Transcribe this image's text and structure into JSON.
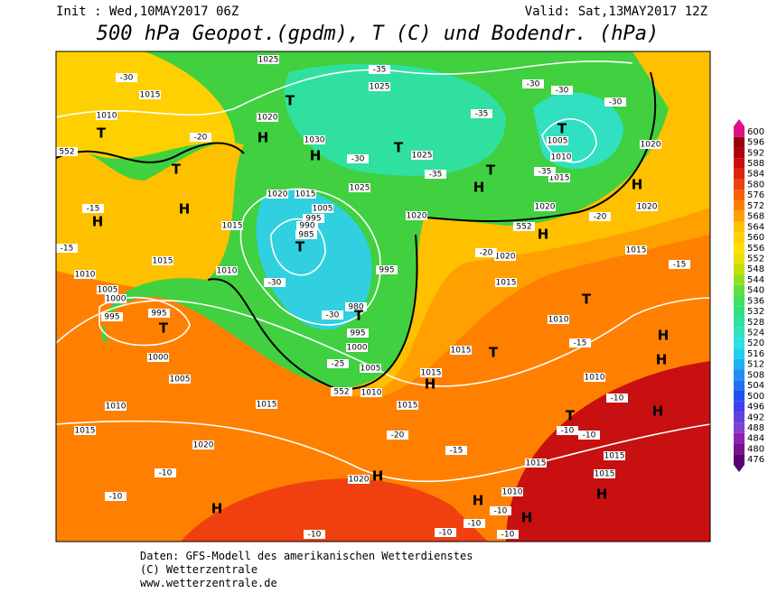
{
  "header": {
    "init": "Init : Wed,10MAY2017 06Z",
    "valid": "Valid: Sat,13MAY2017 12Z",
    "title": "500 hPa Geopot.(gpdm), T (C) und Bodendr. (hPa)"
  },
  "legend": {
    "levels": [
      600,
      596,
      592,
      588,
      584,
      580,
      576,
      572,
      568,
      564,
      560,
      556,
      552,
      548,
      544,
      540,
      536,
      532,
      528,
      524,
      520,
      516,
      512,
      508,
      504,
      500,
      496,
      492,
      488,
      484,
      480,
      476
    ]
  },
  "map": {
    "labels": [
      "-30",
      "1015",
      "1010",
      "T",
      "552",
      "-20",
      "T",
      "H",
      "-15",
      "H",
      "-15",
      "1010",
      "1015",
      "1005",
      "1000",
      "995",
      "995",
      "T",
      "1000",
      "1005",
      "1010",
      "1015",
      "1020",
      "-10",
      "-10",
      "H",
      "1015",
      "1010",
      "1015",
      "1025",
      "1020",
      "H",
      "T",
      "1030",
      "H",
      "1020",
      "1015",
      "1005",
      "995",
      "990",
      "985",
      "T",
      "-30",
      "-30",
      "980",
      "T",
      "995",
      "1000",
      "-25",
      "1005",
      "552",
      "1010",
      "995",
      "1025",
      "-30",
      "1025",
      "-35",
      "1025",
      "T",
      "1020",
      "-35",
      "H",
      "T",
      "-35",
      "-30",
      "-30",
      "-30",
      "T",
      "1005",
      "1010",
      "1015",
      "-35",
      "1020",
      "-20",
      "1020",
      "H",
      "1020",
      "552",
      "H",
      "1020",
      "-20",
      "1015",
      "-15",
      "1015",
      "T",
      "1010",
      "-15",
      "H",
      "H",
      "1015",
      "T",
      "1015",
      "H",
      "1015",
      "-20",
      "-15",
      "1010",
      "-10",
      "H",
      "T",
      "-10",
      "-10",
      "1015",
      "1015",
      "1015",
      "H",
      "1020",
      "H",
      "1010",
      "H",
      "-10",
      "H",
      "-10",
      "-10",
      "-10",
      "-10"
    ]
  },
  "footer": {
    "line1": "Daten: GFS-Modell des amerikanischen Wetterdienstes",
    "line2": "(C) Wetterzentrale",
    "line3": "www.wetterzentrale.de"
  }
}
